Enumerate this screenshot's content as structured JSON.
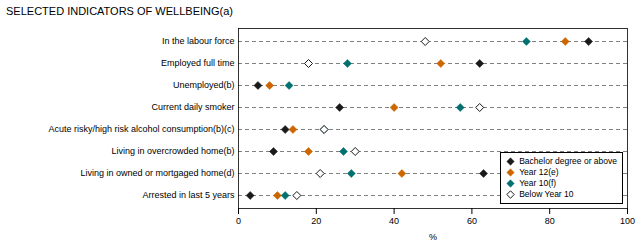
{
  "chart_data": {
    "type": "dot",
    "title": "SELECTED INDICATORS OF WELLBEING(a)",
    "xlabel": "%",
    "categories": [
      "In the labour force",
      "Employed full time",
      "Unemployed(b)",
      "Current daily smoker",
      "Acute risky/high risk alcohol consumption(b)(c)",
      "Living in overcrowded home(b)",
      "Living in owned or mortgaged home(d)",
      "Arrested in last 5 years"
    ],
    "series": [
      {
        "name": "Bachelor degree or above",
        "color": "#1a1a1a",
        "marker": "diamond",
        "values": [
          90,
          62,
          5,
          26,
          12,
          9,
          63,
          3
        ]
      },
      {
        "name": "Year 12(e)",
        "color": "#cc6600",
        "marker": "diamond",
        "values": [
          84,
          52,
          8,
          40,
          14,
          18,
          42,
          10
        ]
      },
      {
        "name": "Year 10(f)",
        "color": "#007070",
        "marker": "diamond",
        "values": [
          74,
          28,
          13,
          57,
          22,
          27,
          29,
          12
        ]
      },
      {
        "name": "Below Year 10",
        "color": "#1a1a1a",
        "marker": "diamond_open",
        "values": [
          48,
          18,
          null,
          62,
          22,
          30,
          21,
          15
        ]
      }
    ],
    "xlim": [
      0,
      100
    ],
    "xticks": [
      0,
      20,
      40,
      60,
      80,
      100
    ],
    "grid": "y",
    "legend": "lower right"
  }
}
